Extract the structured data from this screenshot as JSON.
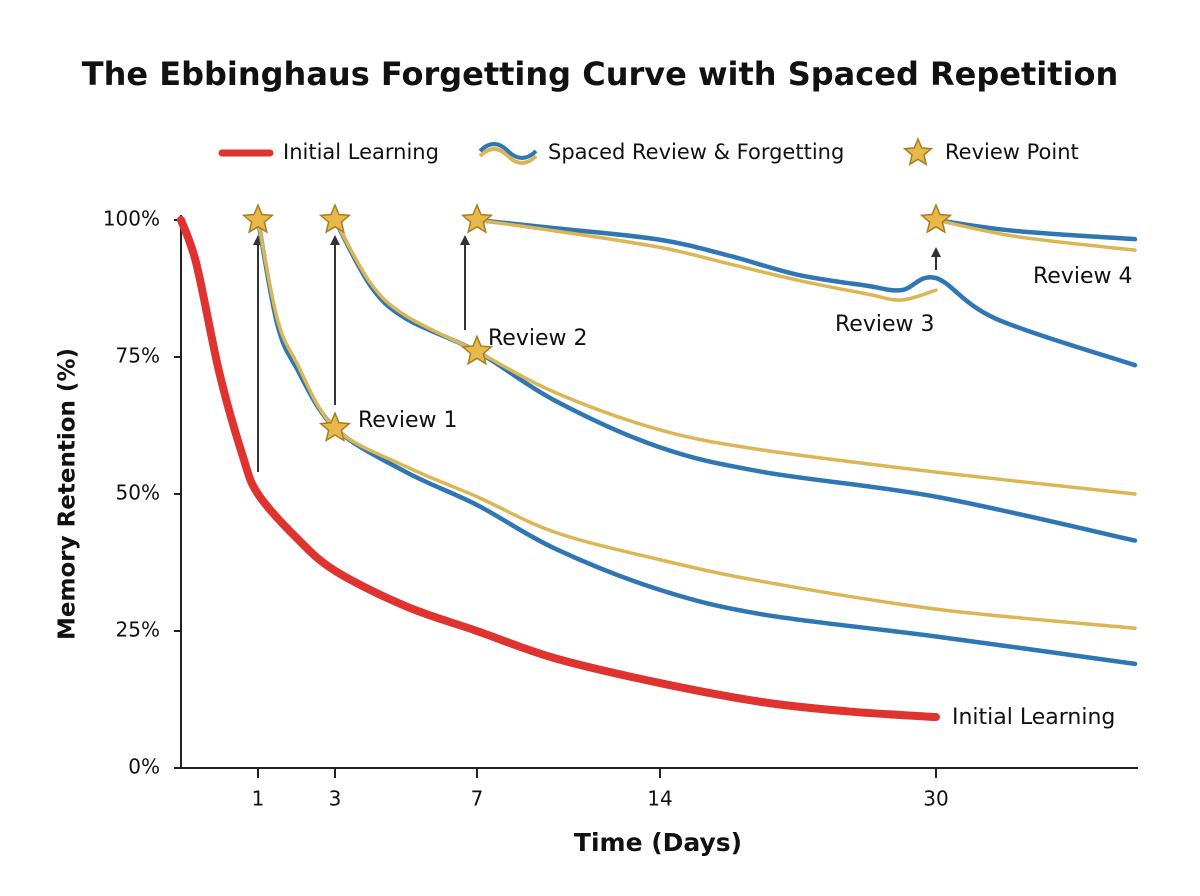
{
  "chart_data": {
    "type": "line",
    "title": "The Ebbinghaus Forgetting Curve with Spaced Repetition",
    "x_label": "Time (Days)",
    "y_label": "Memory Retention (%)",
    "xlim": [
      0,
      40
    ],
    "xticks": [
      1,
      3,
      7,
      14,
      30
    ],
    "ylim": [
      0,
      100
    ],
    "yticks": [
      {
        "value": 0,
        "label": "0%"
      },
      {
        "value": 25,
        "label": "25%"
      },
      {
        "value": 50,
        "label": "50%"
      },
      {
        "value": 75,
        "label": "75%"
      },
      {
        "value": 100,
        "label": "100%"
      }
    ],
    "grid": false,
    "series": [
      {
        "name": "Initial Learning",
        "color": "#e0332f",
        "x": [
          0,
          0.2,
          0.5,
          0.8,
          1,
          2,
          3,
          5,
          7,
          10,
          14,
          20,
          25,
          30
        ],
        "values": [
          100,
          92,
          72,
          57,
          50,
          42,
          36,
          29.5,
          25,
          20,
          15.5,
          12,
          10.3,
          9.3
        ]
      },
      {
        "name": "Spaced Review & Forgetting",
        "color": "#2e77b4",
        "alt_color": "#dcb654",
        "segments": [
          {
            "x": [
              1,
              1.5,
              2,
              3,
              5,
              7,
              10,
              14,
              20,
              30,
              40
            ],
            "values": [
              100,
              81,
              73,
              62,
              54,
              48,
              40,
              32.5,
              28,
              24,
              19
            ],
            "alt_values": [
              100,
              82,
              74,
              62,
              55,
              49.5,
              43,
              38,
              34,
              29,
              25.5
            ]
          },
          {
            "x": [
              3,
              4,
              5,
              7,
              10,
              14,
              20,
              30,
              40
            ],
            "values": [
              100,
              88,
              82,
              76,
              67,
              58.5,
              54,
              49.5,
              41.5
            ],
            "alt_values": [
              100,
              88.5,
              82.5,
              76,
              68.5,
              61.7,
              58,
              54,
              50
            ]
          },
          {
            "x": [
              7,
              10,
              14,
              18,
              22,
              26,
              28,
              30,
              33,
              40
            ],
            "values": [
              100,
              98.5,
              96.4,
              93.5,
              90,
              88,
              87.2,
              89.4,
              82,
              73.5
            ],
            "alt_values": [
              100,
              98,
              95,
              92,
              89,
              86.5,
              85.4,
              87.2,
              null,
              null
            ]
          },
          {
            "x": [
              30,
              34,
              40
            ],
            "values": [
              100,
              98,
              96.5
            ],
            "alt_values": [
              100,
              97,
              94.5
            ]
          }
        ]
      },
      {
        "name": "Review Point",
        "type": "scatter",
        "color": "#e8b84a",
        "x": [
          1,
          3,
          3,
          7,
          7,
          30
        ],
        "values": [
          100,
          100,
          62,
          100,
          76,
          100
        ]
      }
    ],
    "annotations": [
      "Review 1",
      "Review 2",
      "Review 3",
      "Review 4",
      "Initial Learning"
    ]
  }
}
